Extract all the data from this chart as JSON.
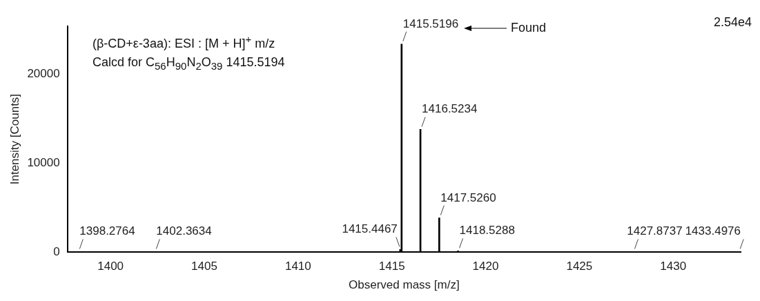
{
  "chart_data": {
    "type": "bar",
    "xlabel": "Observed mass [m/z]",
    "ylabel": "Intensity [Counts]",
    "x": [
      1398.2764,
      1402.3634,
      1415.4467,
      1415.5196,
      1416.5234,
      1417.526,
      1418.5288,
      1427.8737,
      1433.4976
    ],
    "values": [
      60,
      60,
      300,
      23400,
      13800,
      3850,
      150,
      60,
      60
    ],
    "color": "#000000",
    "xlim": [
      1397.7,
      1433.6
    ],
    "xticks": [
      1400,
      1405,
      1410,
      1415,
      1420,
      1425,
      1430
    ],
    "ylim": [
      0,
      25400
    ],
    "yticks": [
      0,
      10000,
      20000
    ],
    "grid": false,
    "legend": false,
    "annotations": [
      "(β-CD+ε-3aa): ESI : [M + H]$^{+}$ m/z",
      "Calcd for C$_{56}$H$_{90}$N$_{2}$O$_{39}$ 1415.5194",
      "Found",
      "2.54e4",
      {
        "text": "1398.2764",
        "x": 1398.2764,
        "y": 60
      },
      {
        "text": "1402.3634",
        "x": 1402.3634,
        "y": 60
      },
      {
        "text": "1415.4467",
        "x": 1415.4467,
        "y": 300
      },
      {
        "text": "1415.5196",
        "x": 1415.5196,
        "y": 23400
      },
      {
        "text": "1416.5234",
        "x": 1416.5234,
        "y": 13800
      },
      {
        "text": "1417.5260",
        "x": 1417.526,
        "y": 3850
      },
      {
        "text": "1418.5288",
        "x": 1418.5288,
        "y": 150
      },
      {
        "text": "1427.8737",
        "x": 1427.8737,
        "y": 60
      },
      {
        "text": "1433.4976",
        "x": 1433.4976,
        "y": 60
      }
    ]
  }
}
